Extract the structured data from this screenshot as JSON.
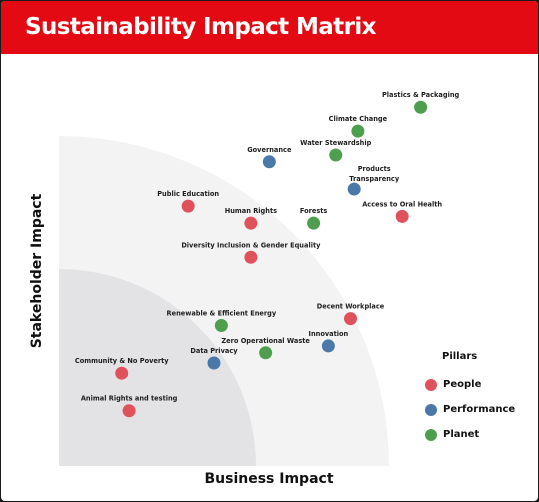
{
  "header": {
    "title": "Sustainability Impact Matrix"
  },
  "colors": {
    "header": "#e30a13",
    "people": "#e0525b",
    "performance": "#4a78a8",
    "planet": "#4e9f4d"
  },
  "chart_data": {
    "type": "scatter",
    "title": "Sustainability Impact Matrix",
    "xlabel": "Business Impact",
    "ylabel": "Stakeholder Impact",
    "xlim": [
      0,
      100
    ],
    "ylim": [
      0,
      100
    ],
    "grid": false,
    "legend": {
      "title": "Pillars",
      "position": "right",
      "entries": [
        {
          "name": "People",
          "color": "#e0525b"
        },
        {
          "name": "Performance",
          "color": "#4a78a8"
        },
        {
          "name": "Planet",
          "color": "#4e9f4d"
        }
      ]
    },
    "points": [
      {
        "label": "Plastics & Packaging",
        "pillar": "Planet",
        "x": 98,
        "y": 97
      },
      {
        "label": "Climate Change",
        "pillar": "Planet",
        "x": 81,
        "y": 90
      },
      {
        "label": "Water Stewardship",
        "pillar": "Planet",
        "x": 75,
        "y": 83
      },
      {
        "label": "Governance",
        "pillar": "Performance",
        "x": 57,
        "y": 81
      },
      {
        "label": "Products Transparency",
        "pillar": "Performance",
        "x": 80,
        "y": 73
      },
      {
        "label": "Access to Oral Health",
        "pillar": "People",
        "x": 93,
        "y": 65
      },
      {
        "label": "Public Education",
        "pillar": "People",
        "x": 35,
        "y": 68
      },
      {
        "label": "Human Rights",
        "pillar": "People",
        "x": 52,
        "y": 63
      },
      {
        "label": "Forests",
        "pillar": "Planet",
        "x": 69,
        "y": 63
      },
      {
        "label": "Diversity Inclusion & Gender Equality",
        "pillar": "People",
        "x": 52,
        "y": 53
      },
      {
        "label": "Decent Workplace",
        "pillar": "People",
        "x": 79,
        "y": 35
      },
      {
        "label": "Renewable & Efficient Energy",
        "pillar": "Planet",
        "x": 44,
        "y": 33
      },
      {
        "label": "Innovation",
        "pillar": "Performance",
        "x": 73,
        "y": 27
      },
      {
        "label": "Zero Operational Waste",
        "pillar": "Planet",
        "x": 56,
        "y": 25
      },
      {
        "label": "Data Privacy",
        "pillar": "Performance",
        "x": 42,
        "y": 22
      },
      {
        "label": "Community & No Poverty",
        "pillar": "People",
        "x": 17,
        "y": 19
      },
      {
        "label": "Animal Rights and testing",
        "pillar": "People",
        "x": 19,
        "y": 8
      }
    ]
  }
}
